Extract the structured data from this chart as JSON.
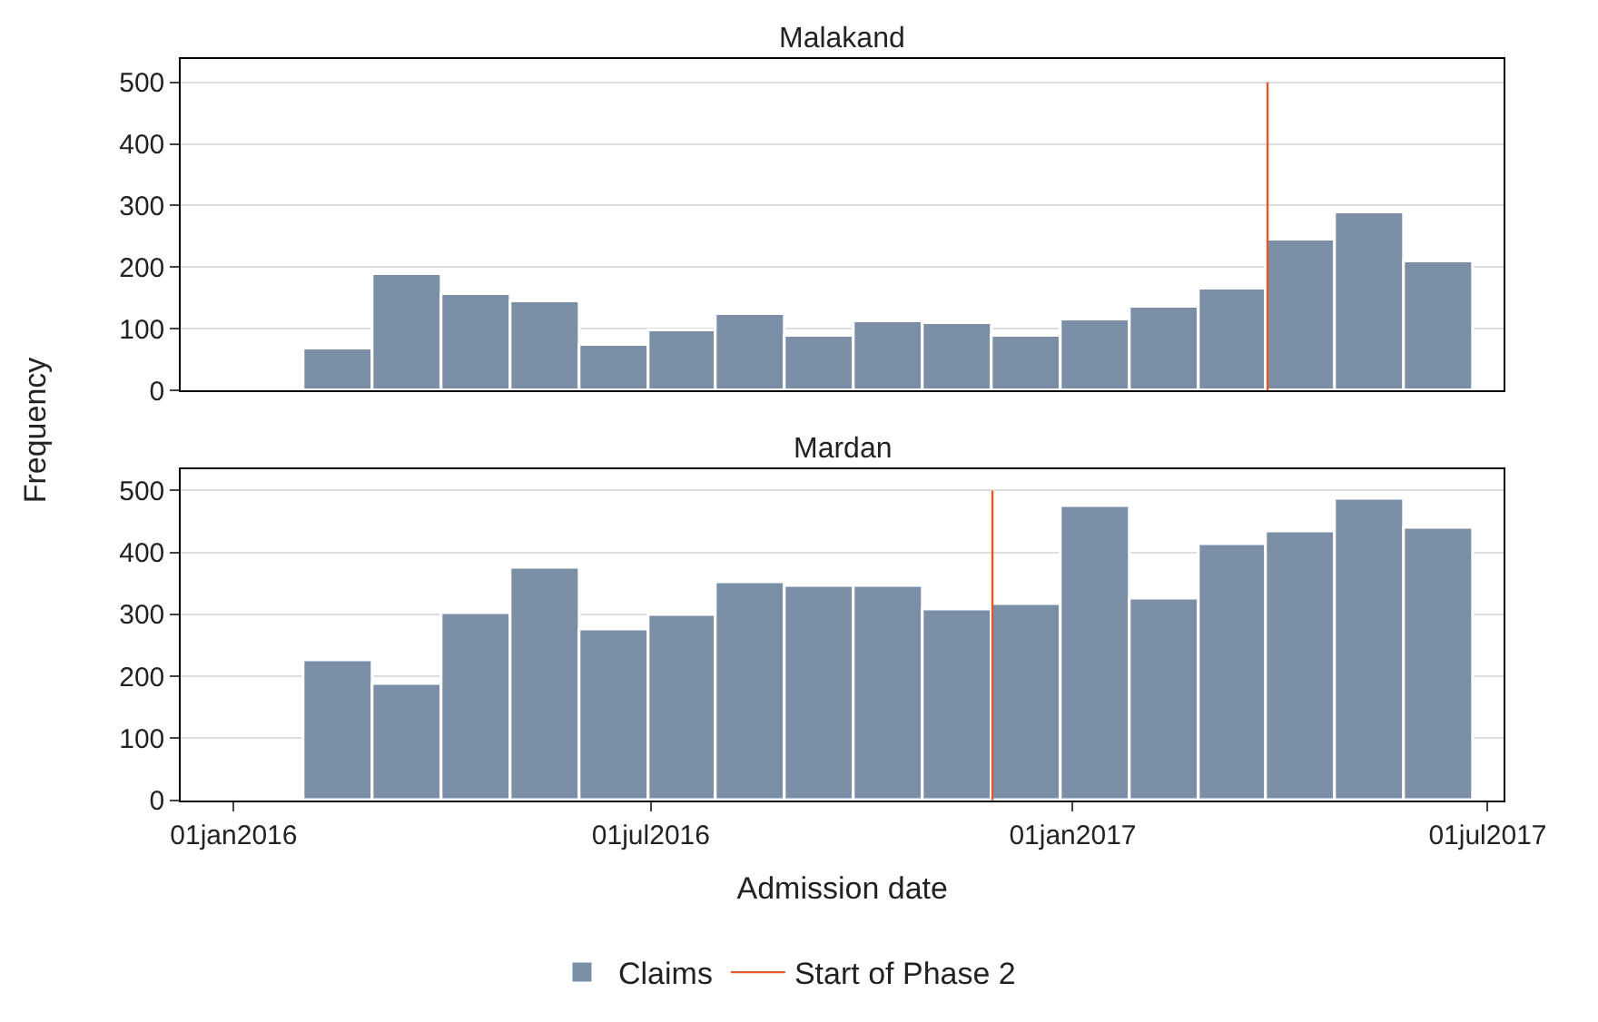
{
  "chart_data": [
    {
      "type": "histogram",
      "title": "Malakand",
      "bins": [
        "2016-02-01",
        "2016-03-02",
        "2016-04-01",
        "2016-05-01",
        "2016-05-31",
        "2016-06-30",
        "2016-07-30",
        "2016-08-29",
        "2016-09-28",
        "2016-10-28",
        "2016-11-27",
        "2016-12-27",
        "2017-01-26",
        "2017-02-25",
        "2017-03-27",
        "2017-04-26",
        "2017-05-26",
        "2017-06-25"
      ],
      "series": [
        {
          "color": "#7a8fa6",
          "values": [
            65,
            188,
            155,
            142,
            73,
            97,
            122,
            88,
            111,
            107,
            88,
            115,
            135,
            165,
            242,
            288,
            208
          ]
        }
      ],
      "xlim": [
        "2015-12-09",
        "2017-07-08"
      ],
      "xticks": [
        {
          "value": "2016-01-01",
          "label": null
        },
        {
          "value": "2016-07-01",
          "label": null
        },
        {
          "value": "2017-01-01",
          "label": null
        },
        {
          "value": "2017-07-01",
          "label": null
        }
      ],
      "ylim": [
        0,
        538
      ],
      "yticks": [
        0,
        100,
        200,
        300,
        400,
        500
      ],
      "ref_lines": [
        {
          "axis": "x",
          "value": "2017-03-27",
          "label": null,
          "color": "#e8572a"
        }
      ],
      "grid": "y",
      "tick_labels": "y"
    },
    {
      "type": "histogram",
      "title": "Mardan",
      "xlabel": "Admission date",
      "ylabel": "Frequency",
      "bins": [
        "2016-02-01",
        "2016-03-02",
        "2016-04-01",
        "2016-05-01",
        "2016-05-31",
        "2016-06-30",
        "2016-07-30",
        "2016-08-29",
        "2016-09-28",
        "2016-10-28",
        "2016-11-27",
        "2016-12-27",
        "2017-01-26",
        "2017-02-25",
        "2017-03-27",
        "2017-04-26",
        "2017-05-26",
        "2017-06-25"
      ],
      "series": [
        {
          "name": "Claims",
          "color": "#7a8fa6",
          "values": [
            223,
            185,
            300,
            373,
            274,
            297,
            350,
            345,
            345,
            307,
            316,
            473,
            323,
            412,
            432,
            484,
            438
          ]
        }
      ],
      "xlim": [
        "2015-12-09",
        "2017-07-08"
      ],
      "xticks": [
        {
          "value": "2016-01-01",
          "label": "01jan2016"
        },
        {
          "value": "2016-07-01",
          "label": "01jul2016"
        },
        {
          "value": "2017-01-01",
          "label": "01jan2017"
        },
        {
          "value": "2017-07-01",
          "label": "01jul2017"
        }
      ],
      "ylim": [
        0,
        535
      ],
      "yticks": [
        0,
        100,
        200,
        300,
        400,
        500
      ],
      "ref_lines": [
        {
          "axis": "x",
          "value": "2016-11-27",
          "label": "Start of Phase 2",
          "color": "#e8572a"
        }
      ],
      "grid": "y",
      "legend": "bottom"
    }
  ]
}
